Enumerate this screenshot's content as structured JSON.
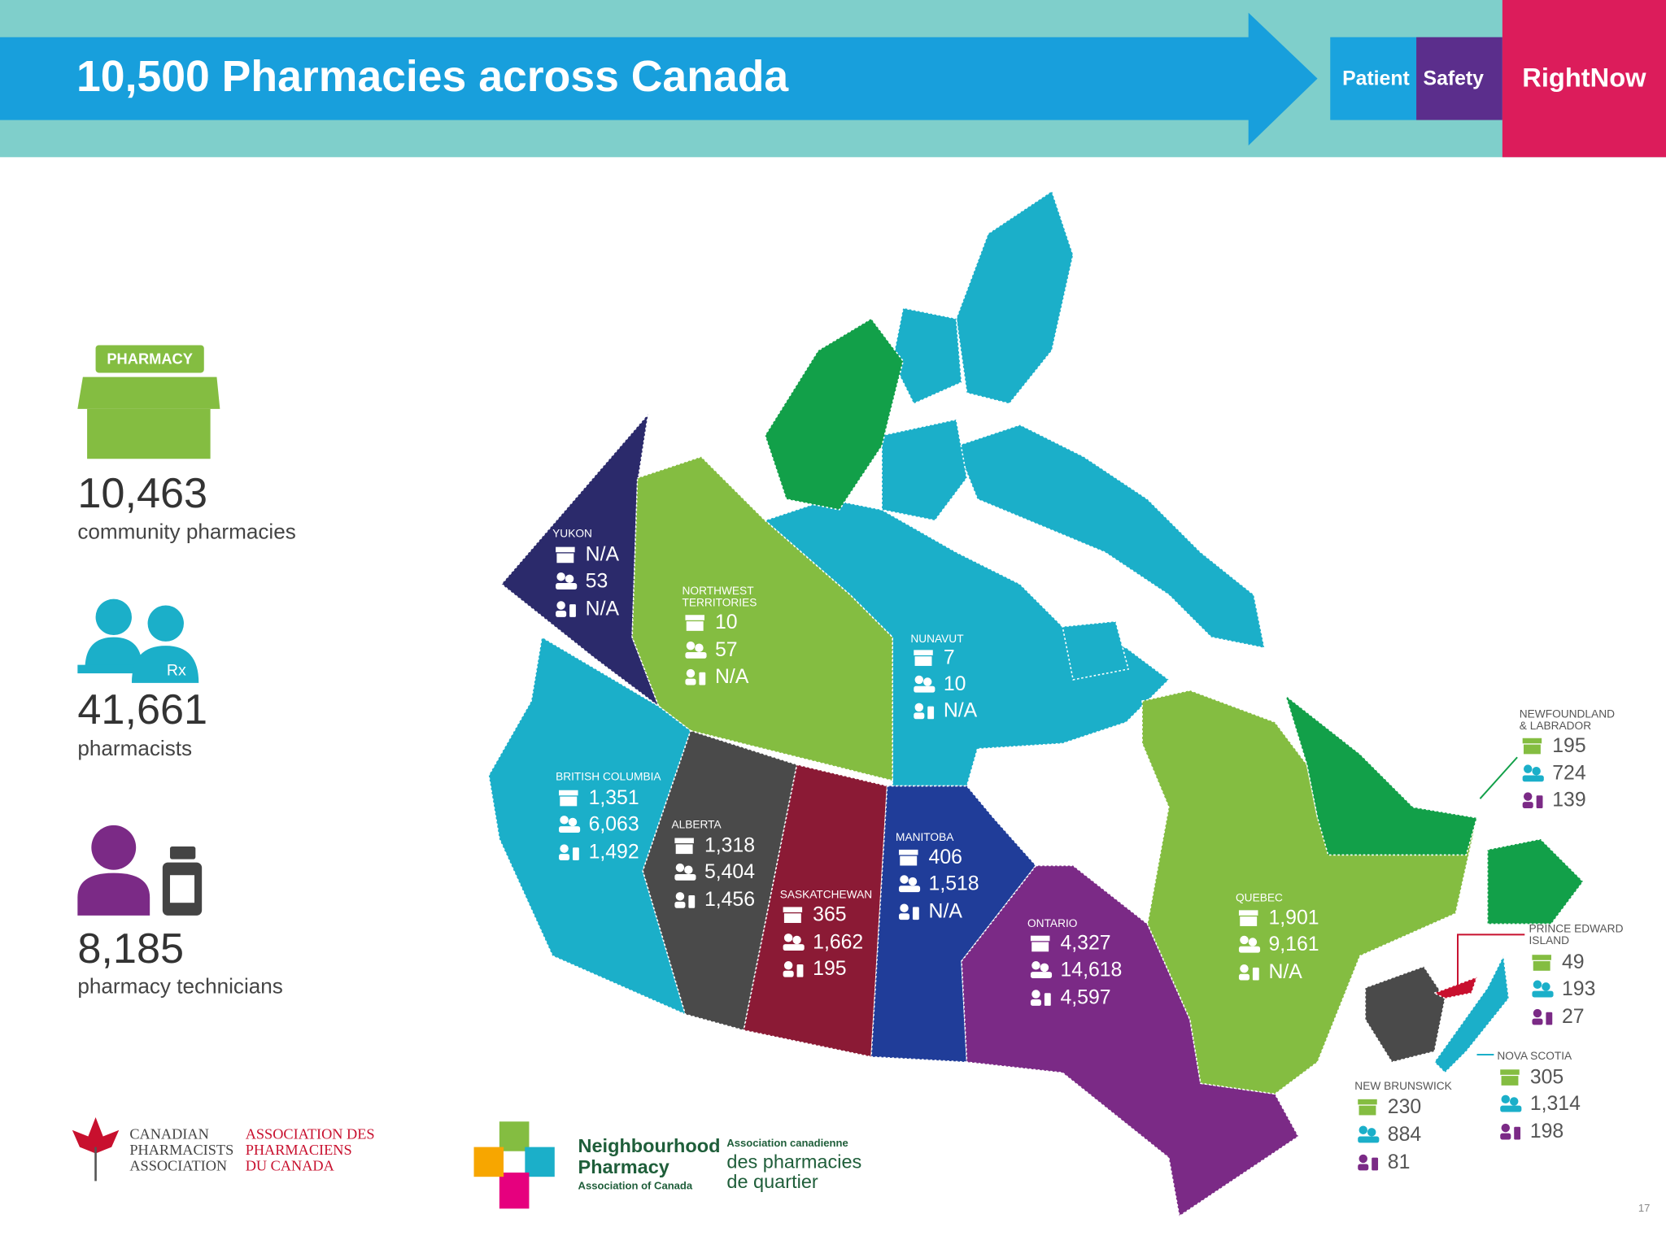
{
  "header": {
    "title": "10,500 Pharmacies across Canada",
    "brand": {
      "patient": "Patient",
      "safety": "Safety",
      "right_now": "RightNow"
    }
  },
  "summary": [
    {
      "icon_text": "PHARMACY",
      "value": "10,463",
      "label": "community pharmacies"
    },
    {
      "icon_text": "Rx",
      "value": "41,661",
      "label": "pharmacists"
    },
    {
      "value": "8,185",
      "label": "pharmacy technicians"
    }
  ],
  "regions": [
    {
      "name": [
        "YUKON"
      ],
      "pharmacies": "N/A",
      "pharmacists": "53",
      "technicians": "N/A"
    },
    {
      "name": [
        "NORTHWEST",
        "TERRITORIES"
      ],
      "pharmacies": "10",
      "pharmacists": "57",
      "technicians": "N/A"
    },
    {
      "name": [
        "NUNAVUT"
      ],
      "pharmacies": "7",
      "pharmacists": "10",
      "technicians": "N/A"
    },
    {
      "name": [
        "BRITISH COLUMBIA"
      ],
      "pharmacies": "1,351",
      "pharmacists": "6,063",
      "technicians": "1,492"
    },
    {
      "name": [
        "ALBERTA"
      ],
      "pharmacies": "1,318",
      "pharmacists": "5,404",
      "technicians": "1,456"
    },
    {
      "name": [
        "SASKATCHEWAN"
      ],
      "pharmacies": "365",
      "pharmacists": "1,662",
      "technicians": "195"
    },
    {
      "name": [
        "MANITOBA"
      ],
      "pharmacies": "406",
      "pharmacists": "1,518",
      "technicians": "N/A"
    },
    {
      "name": [
        "ONTARIO"
      ],
      "pharmacies": "4,327",
      "pharmacists": "14,618",
      "technicians": "4,597"
    },
    {
      "name": [
        "QUEBEC"
      ],
      "pharmacies": "1,901",
      "pharmacists": "9,161",
      "technicians": "N/A"
    },
    {
      "name": [
        "NEWFOUNDLAND",
        "& LABRADOR"
      ],
      "pharmacies": "195",
      "pharmacists": "724",
      "technicians": "139"
    },
    {
      "name": [
        "PRINCE EDWARD",
        "ISLAND"
      ],
      "pharmacies": "49",
      "pharmacists": "193",
      "technicians": "27"
    },
    {
      "name": [
        "NOVA SCOTIA"
      ],
      "pharmacies": "305",
      "pharmacists": "1,314",
      "technicians": "198"
    },
    {
      "name": [
        "NEW BRUNSWICK"
      ],
      "pharmacies": "230",
      "pharmacists": "884",
      "technicians": "81"
    }
  ],
  "logos": {
    "cpha_en": [
      "CANADIAN",
      "PHARMACISTS",
      "ASSOCIATION"
    ],
    "cpha_fr": [
      "ASSOCIATION DES",
      "PHARMACIENS",
      "DU CANADA"
    ],
    "npac_en": [
      "Neighbourhood",
      "Pharmacy",
      "Association of Canada"
    ],
    "npac_fr": [
      "Association canadienne",
      "des pharmacies",
      "de quartier"
    ]
  },
  "page_number": "17"
}
